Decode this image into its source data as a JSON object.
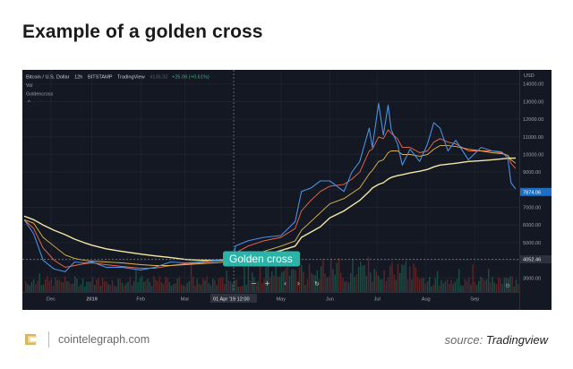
{
  "page": {
    "title": "Example of a golden cross",
    "brand": "cointelegraph.com",
    "source_label": "source:",
    "source_name": "Tradingview"
  },
  "chart_header": {
    "pair": "Bitcoin / U.S. Dollar",
    "interval": "12h",
    "exchange": "BITSTAMP",
    "platform": "TradingView",
    "price": "4136.32",
    "change": "+25.06 (+0.61%)",
    "vol_label": "Vol",
    "study_label": "Goldencross",
    "collapse_glyph": "^"
  },
  "toolbar": {
    "zoom_out": "−",
    "zoom_in": "+",
    "scroll_left": "‹",
    "scroll_right": "›",
    "reset": "↻",
    "settings": "⚙"
  },
  "chart_data": {
    "type": "line",
    "currency_label": "USD",
    "x_ticks": [
      "Dec",
      "2019",
      "Feb",
      "Mar",
      "01 Apr '19",
      "12:00",
      "May",
      "Jun",
      "Jul",
      "Aug",
      "Sep"
    ],
    "x_cursor_label": "01 Apr '19  12:00",
    "y_ticks": [
      3000,
      4000,
      5000,
      6000,
      7000,
      8000,
      9000,
      10000,
      11000,
      12000,
      13000,
      14000
    ],
    "y_tick_labels": [
      "3000.00",
      "4000.00",
      "5000.00",
      "6000.00",
      "7000.00",
      "8000.00",
      "9000.00",
      "10000.00",
      "11000.00",
      "12000.00",
      "13000.00",
      "14000.00"
    ],
    "ylim": [
      2200,
      14800
    ],
    "x": [
      "2018-11-19",
      "2018-11-25",
      "2018-12-01",
      "2018-12-08",
      "2018-12-15",
      "2018-12-21",
      "2018-12-27",
      "2019-01-01",
      "2019-01-10",
      "2019-01-20",
      "2019-02-01",
      "2019-02-10",
      "2019-02-20",
      "2019-03-01",
      "2019-03-10",
      "2019-03-20",
      "2019-04-01",
      "2019-04-02",
      "2019-04-10",
      "2019-04-20",
      "2019-05-01",
      "2019-05-10",
      "2019-05-14",
      "2019-05-20",
      "2019-05-26",
      "2019-06-01",
      "2019-06-10",
      "2019-06-15",
      "2019-06-20",
      "2019-06-26",
      "2019-06-28",
      "2019-07-02",
      "2019-07-05",
      "2019-07-08",
      "2019-07-10",
      "2019-07-14",
      "2019-07-17",
      "2019-07-22",
      "2019-07-28",
      "2019-08-02",
      "2019-08-06",
      "2019-08-10",
      "2019-08-15",
      "2019-08-20",
      "2019-08-28",
      "2019-09-05",
      "2019-09-12",
      "2019-09-18",
      "2019-09-22",
      "2019-09-24",
      "2019-09-27"
    ],
    "series": [
      {
        "color": "#4a90e2",
        "values": [
          6300,
          5500,
          4000,
          3500,
          3350,
          3900,
          3850,
          3900,
          3600,
          3600,
          3450,
          3600,
          3900,
          3850,
          3900,
          4000,
          4100,
          4800,
          5100,
          5300,
          5400,
          6200,
          7900,
          8100,
          8500,
          8500,
          7900,
          9000,
          9600,
          11500,
          10400,
          12900,
          11100,
          12800,
          11400,
          10600,
          9400,
          10300,
          9600,
          10600,
          11800,
          11500,
          10200,
          10800,
          9700,
          10400,
          10200,
          10150,
          9800,
          8400,
          8050
        ]
      },
      {
        "color": "#f06a4e",
        "values": [
          6300,
          5800,
          4700,
          4000,
          3600,
          3700,
          3800,
          3850,
          3750,
          3650,
          3550,
          3550,
          3700,
          3800,
          3850,
          3950,
          4050,
          4400,
          4800,
          5100,
          5300,
          5800,
          6800,
          7400,
          7900,
          8200,
          8300,
          8600,
          9000,
          10200,
          10300,
          11000,
          10900,
          11400,
          11200,
          10900,
          10400,
          10400,
          10100,
          10200,
          10700,
          10900,
          10700,
          10600,
          10200,
          10200,
          10200,
          10100,
          9950,
          9500,
          9200
        ]
      },
      {
        "color": "#e2b84c",
        "values": [
          6300,
          6100,
          5300,
          4800,
          4300,
          4100,
          4000,
          3950,
          3900,
          3850,
          3750,
          3700,
          3700,
          3750,
          3800,
          3850,
          3950,
          4100,
          4300,
          4500,
          4800,
          5100,
          5700,
          6200,
          6700,
          7200,
          7500,
          7800,
          8100,
          8900,
          9100,
          9600,
          9700,
          10100,
          10200,
          10200,
          10000,
          10000,
          9900,
          10000,
          10300,
          10500,
          10500,
          10450,
          10300,
          10200,
          10100,
          10050,
          9950,
          9700,
          9500
        ]
      },
      {
        "color": "#f5e7a6",
        "values": [
          6500,
          6300,
          6000,
          5700,
          5450,
          5200,
          5000,
          4850,
          4650,
          4500,
          4350,
          4250,
          4150,
          4050,
          4000,
          4000,
          4000,
          4000,
          4100,
          4300,
          4550,
          4800,
          5300,
          5600,
          5900,
          6400,
          6800,
          7100,
          7400,
          7900,
          8100,
          8300,
          8400,
          8600,
          8700,
          8800,
          8850,
          8950,
          9050,
          9150,
          9300,
          9400,
          9450,
          9500,
          9600,
          9650,
          9700,
          9750,
          9780,
          9790,
          9790
        ]
      }
    ],
    "price_labels": [
      "4052.46",
      "7874.06"
    ],
    "annotations": [
      "Golden cross"
    ],
    "grid": true,
    "legend": "none"
  }
}
